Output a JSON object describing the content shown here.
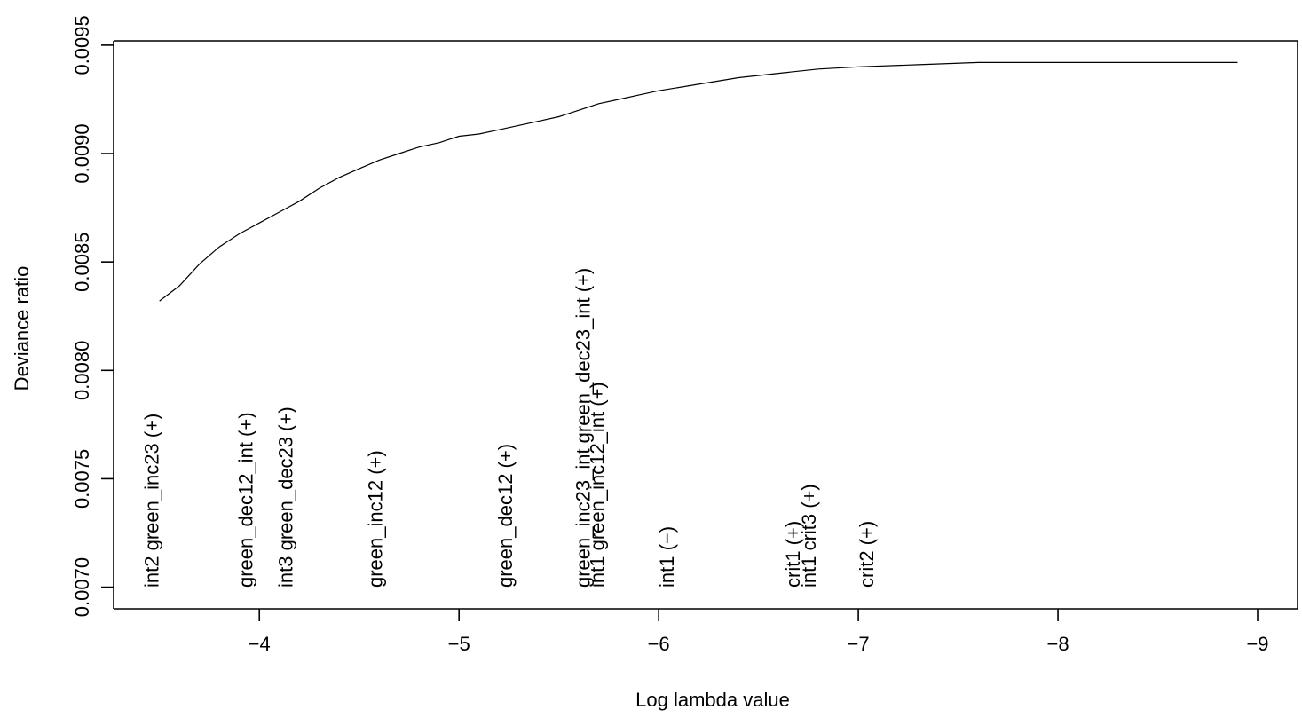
{
  "chart_data": {
    "type": "line",
    "title": "",
    "xlabel": "Log lambda value",
    "ylabel": "Deviance ratio",
    "xlim": [
      -3.27,
      -9.2
    ],
    "ylim": [
      0.0069,
      0.00952
    ],
    "grid": false,
    "legend": "none",
    "x_ticks": [
      {
        "value": -4,
        "label": "−4"
      },
      {
        "value": -5,
        "label": "−5"
      },
      {
        "value": -6,
        "label": "−6"
      },
      {
        "value": -7,
        "label": "−7"
      },
      {
        "value": -8,
        "label": "−8"
      },
      {
        "value": -9,
        "label": "−9"
      }
    ],
    "y_ticks": [
      {
        "value": 0.007,
        "label": "0.0070"
      },
      {
        "value": 0.0075,
        "label": "0.0075"
      },
      {
        "value": 0.008,
        "label": "0.0080"
      },
      {
        "value": 0.0085,
        "label": "0.0085"
      },
      {
        "value": 0.009,
        "label": "0.0090"
      },
      {
        "value": 0.0095,
        "label": "0.0095"
      }
    ],
    "series": [
      {
        "x": [
          -3.5,
          -3.6,
          -3.7,
          -3.8,
          -3.9,
          -4.0,
          -4.1,
          -4.2,
          -4.3,
          -4.4,
          -4.5,
          -4.6,
          -4.7,
          -4.8,
          -4.9,
          -5.0,
          -5.1,
          -5.2,
          -5.3,
          -5.4,
          -5.5,
          -5.6,
          -5.7,
          -5.8,
          -5.9,
          -6.0,
          -6.2,
          -6.4,
          -6.6,
          -6.8,
          -7.0,
          -7.3,
          -7.6,
          -8.0,
          -8.5,
          -8.9
        ],
        "y": [
          0.00832,
          0.00839,
          0.00849,
          0.00857,
          0.00863,
          0.00868,
          0.00873,
          0.00878,
          0.00884,
          0.00889,
          0.00893,
          0.00897,
          0.009,
          0.00903,
          0.00905,
          0.00908,
          0.00909,
          0.00911,
          0.00913,
          0.00915,
          0.00917,
          0.0092,
          0.00923,
          0.00925,
          0.00927,
          0.00929,
          0.00932,
          0.00935,
          0.00937,
          0.00939,
          0.0094,
          0.00941,
          0.00942,
          0.00942,
          0.00942,
          0.00942
        ]
      }
    ],
    "annotations": [
      {
        "text": "int2 green_inc23 (+)",
        "x": -3.46
      },
      {
        "text": "green_dec12_int (+)",
        "x": -3.93
      },
      {
        "text": "int3 green_dec23 (+)",
        "x": -4.13
      },
      {
        "text": "green_inc12 (+)",
        "x": -4.58
      },
      {
        "text": "green_dec12 (+)",
        "x": -5.23
      },
      {
        "text": "green_inc23_int green_dec23_int (+)",
        "x": -5.62
      },
      {
        "text": "int1 green_inc12_int (+)",
        "x": -5.69
      },
      {
        "text": "int1 (−)",
        "x": -6.04
      },
      {
        "text": "crit1 (+)",
        "x": -6.67
      },
      {
        "text": "int1 crit3 (+)",
        "x": -6.75
      },
      {
        "text": "crit2 (+)",
        "x": -7.04
      }
    ]
  }
}
